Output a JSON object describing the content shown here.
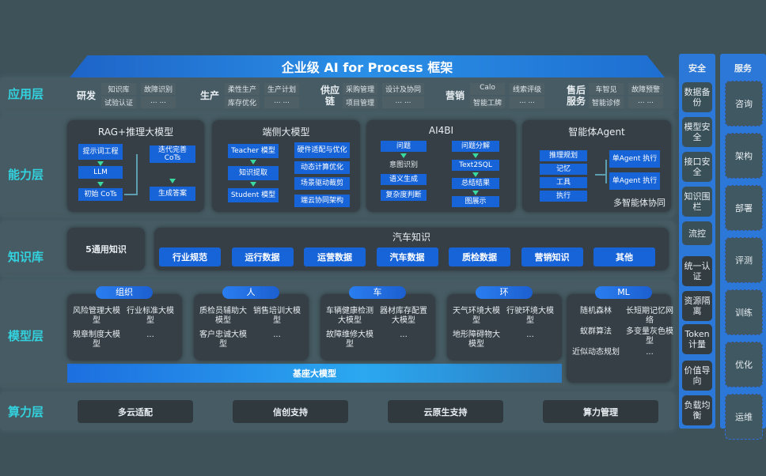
{
  "title": "企业级 AI for Process 框架",
  "layers": {
    "app": "应用层",
    "capability": "能力层",
    "knowledge": "知识库",
    "model": "模型层",
    "compute": "算力层"
  },
  "app_groups": [
    {
      "name": "研发",
      "items": [
        "知识库",
        "故障识别",
        "试验认证",
        "... ..."
      ]
    },
    {
      "name": "生产",
      "items": [
        "柔性生产",
        "生产计划",
        "库存优化",
        "... ..."
      ]
    },
    {
      "name": "供应链",
      "items": [
        "采购管理",
        "设计及协同",
        "项目管理",
        "... ..."
      ]
    },
    {
      "name": "营销",
      "items": [
        "Calo",
        "线索评级",
        "智能工牌",
        "... ..."
      ]
    },
    {
      "name": "售后服务",
      "items": [
        "车智见",
        "故障预警",
        "智能诊修",
        "... ..."
      ]
    }
  ],
  "capability": {
    "rag": {
      "title": "RAG+推理大模型",
      "items": [
        "提示词工程",
        "LLM",
        "初始 CoTs",
        "迭代完善 CoTs",
        "生成答案"
      ]
    },
    "edge": {
      "title": "端侧大模型",
      "left": [
        "Teacher 模型",
        "知识提取",
        "Student 模型"
      ],
      "right": [
        "硬件适配与优化",
        "动态计算优化",
        "场景驱动裁剪",
        "端云协同架构"
      ]
    },
    "ai4bi": {
      "title": "AI4BI",
      "left": [
        "问题",
        "意图识别",
        "语义生成",
        "复杂度判断"
      ],
      "right": [
        "问题分解",
        "Text2SQL",
        "总结结果",
        "图展示"
      ]
    },
    "agent": {
      "title": "智能体Agent",
      "left": [
        "推理规划",
        "记忆",
        "工具",
        "执行"
      ],
      "right": [
        "单Agent 执行",
        "单Agent 执行"
      ],
      "footer": "多智能体协同"
    }
  },
  "knowledge": {
    "general": "5通用知识",
    "auto_title": "汽车知识",
    "auto_items": [
      "行业规范",
      "运行数据",
      "运营数据",
      "汽车数据",
      "质检数据",
      "营销知识",
      "其他"
    ]
  },
  "models": [
    {
      "name": "组织",
      "items": [
        "风险管理大模型",
        "行业标准大模型",
        "规章制度大模型",
        "..."
      ]
    },
    {
      "name": "人",
      "items": [
        "质检员辅助大模型",
        "销售培训大模型",
        "客户忠诚大模型",
        "..."
      ]
    },
    {
      "name": "车",
      "items": [
        "车辆健康检测大模型",
        "器材库存配置大模型",
        "故障维修大模型",
        "..."
      ]
    },
    {
      "name": "环",
      "items": [
        "天气环境大模型",
        "行驶环境大模型",
        "地形障碍物大模型",
        "..."
      ]
    },
    {
      "name": "ML",
      "items": [
        "随机森林",
        "长短期记忆网络",
        "蚁群算法",
        "多变量灰色模型",
        "近似动态规划",
        "..."
      ]
    }
  ],
  "base_model": "基座大模型",
  "compute": [
    "多云适配",
    "信创支持",
    "云原生支持",
    "算力管理"
  ],
  "security": {
    "title": "安全",
    "items": [
      "数据备份",
      "模型安全",
      "接口安全",
      "知识围栏",
      "流控",
      "统一认证",
      "资源隔离",
      "Token计量",
      "价值导向",
      "负载均衡"
    ]
  },
  "services": {
    "title": "服务",
    "items": [
      "咨询",
      "架构",
      "部署",
      "评测",
      "训练",
      "优化",
      "运维"
    ]
  },
  "colors": {
    "accent": "#1764d8",
    "label": "#33d2df",
    "background": "#3e525a"
  }
}
